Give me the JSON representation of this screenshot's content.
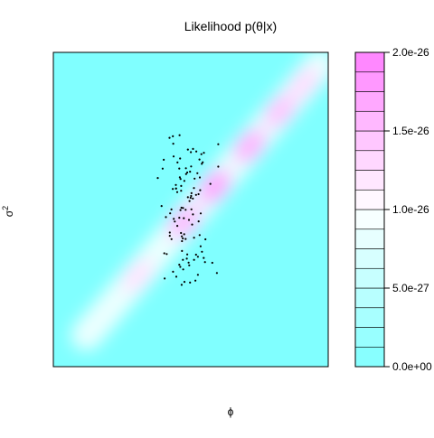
{
  "chart_data": {
    "type": "heatmap",
    "title": "Likelihood p(θ|x)",
    "xlabel": "ϕ",
    "ylabel_base": "σ",
    "ylabel_sup": "2",
    "legend_placement": "right",
    "colorbar": {
      "min": 0,
      "max": 2e-26,
      "levels": 16,
      "ticks": [
        {
          "value": 0,
          "label": "0.0e+00"
        },
        {
          "value": 5e-27,
          "label": "5.0e-27"
        },
        {
          "value": 1e-26,
          "label": "1.0e-26"
        },
        {
          "value": 1.5e-26,
          "label": "1.5e-26"
        },
        {
          "value": 2e-26,
          "label": "2.0e-26"
        }
      ],
      "low_color": "#80FFFF",
      "mid_color": "#FFFFFF",
      "high_color": "#FF80FF"
    },
    "density_ridge": {
      "from": [
        0.12,
        0.1
      ],
      "to": [
        0.97,
        0.96
      ],
      "peaks": [
        {
          "t": 0.22,
          "value": 1.2e-26
        },
        {
          "t": 0.42,
          "value": 1.55e-26
        },
        {
          "t": 0.55,
          "value": 1.7e-26
        },
        {
          "t": 0.7,
          "value": 1.6e-26
        },
        {
          "t": 0.83,
          "value": 1.45e-26
        },
        {
          "t": 0.93,
          "value": 1.25e-26
        }
      ]
    },
    "points_count": 110,
    "points_center": [
      0.48,
      0.5
    ],
    "points_spread": [
      0.065,
      0.24
    ]
  }
}
